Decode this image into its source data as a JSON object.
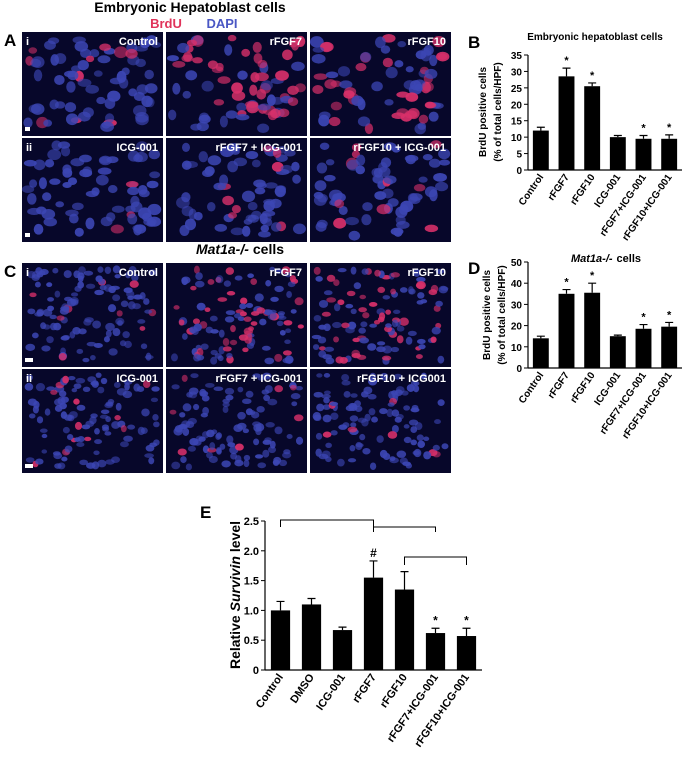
{
  "figure": {
    "A": {
      "label": "A",
      "title": "Embryonic Hepatoblast cells",
      "stain_red": "BrdU",
      "stain_blue": "DAPI",
      "rows": [
        {
          "label": "i",
          "images": [
            "Control",
            "rFGF7",
            "rFGF10"
          ]
        },
        {
          "label": "ii",
          "images": [
            "ICG-001",
            "rFGF7 + ICG-001",
            "rFGF10 + ICG-001"
          ]
        }
      ]
    },
    "C": {
      "label": "C",
      "title": {
        "italic": "Mat1a-/-",
        "rest": "cells"
      },
      "rows": [
        {
          "label": "i",
          "images": [
            "Control",
            "rFGF7",
            "rFGF10"
          ]
        },
        {
          "label": "ii",
          "images": [
            "ICG-001",
            "rFGF7 + ICG-001",
            "rFGF10 + ICG001"
          ]
        }
      ]
    }
  },
  "chart_data": [
    {
      "type": "bar",
      "label": "B",
      "title": "Embryonic hepatoblast cells",
      "ylabel": [
        "BrdU positive cells",
        "(% of total cells/HPF)"
      ],
      "categories": [
        "Control",
        "rFGF7",
        "rFGF10",
        "ICG-001",
        "rFGF7+ICG-001",
        "rFGF10+ICG-001"
      ],
      "values": [
        12,
        28.5,
        25.5,
        10,
        9.5,
        9.5
      ],
      "errors": [
        1,
        2.5,
        1,
        0.5,
        1,
        1.2
      ],
      "significance": [
        null,
        "*",
        "*",
        null,
        "*",
        "*"
      ],
      "color": "#000000",
      "ylim": [
        0,
        35
      ],
      "yticks": [
        0,
        5,
        10,
        15,
        20,
        25,
        30,
        35
      ]
    },
    {
      "type": "bar",
      "label": "D",
      "title": {
        "italic": "Mat1a-/-",
        "rest": "cells"
      },
      "ylabel": [
        "BrdU positive cells",
        "(% of total cells/HPF)"
      ],
      "categories": [
        "Control",
        "rFGF7",
        "rFGF10",
        "ICG-001",
        "rFGF7+ICG-001",
        "rFGF10+ICG-001"
      ],
      "values": [
        14,
        35,
        35.5,
        15,
        18.5,
        19.5
      ],
      "errors": [
        1,
        2,
        4.5,
        0.5,
        2,
        2
      ],
      "significance": [
        null,
        "*",
        "*",
        null,
        "*",
        "*"
      ],
      "color": "#000000",
      "ylim": [
        0,
        50
      ],
      "yticks": [
        0,
        10,
        20,
        30,
        40,
        50
      ]
    },
    {
      "type": "bar",
      "label": "E",
      "ylabel": {
        "before": "Relative",
        "italic": "Survivin",
        "after": "level"
      },
      "categories": [
        "Control",
        "DMSO",
        "ICG-001",
        "rFGF7",
        "rFGF10",
        "rFGF7+ICG-001",
        "rFGF10+ICG-001"
      ],
      "values": [
        1.0,
        1.1,
        0.67,
        1.55,
        1.35,
        0.62,
        0.57
      ],
      "errors": [
        0.15,
        0.1,
        0.05,
        0.28,
        0.3,
        0.08,
        0.13
      ],
      "significance": [
        null,
        null,
        null,
        "#",
        null,
        "*",
        "*"
      ],
      "color": "#000000",
      "ylim": [
        0,
        2.5
      ],
      "yticks": [
        0,
        0.5,
        {
          "value": 1,
          "label": "1.0"
        },
        1.5,
        {
          "value": 2,
          "label": "2.0"
        },
        2.5
      ]
    }
  ]
}
